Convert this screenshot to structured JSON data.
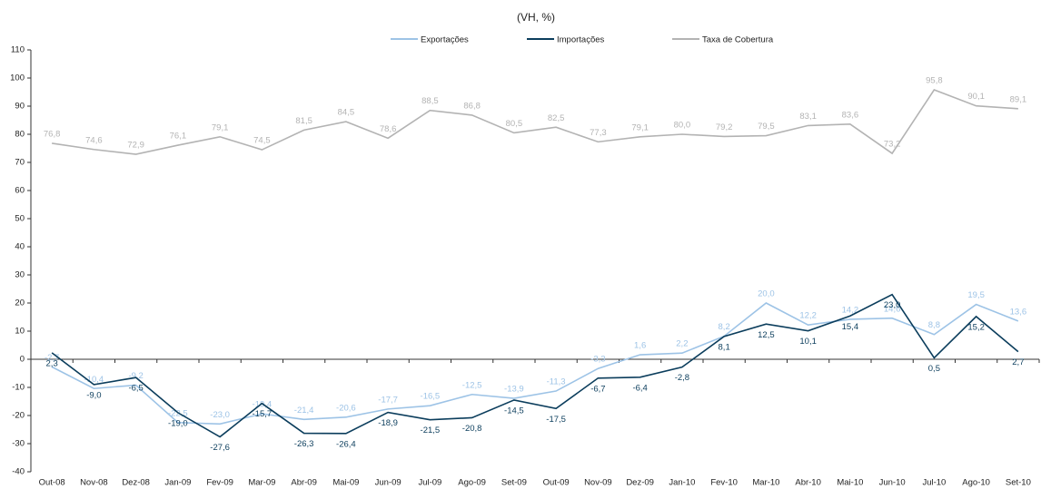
{
  "chart_data": {
    "type": "line",
    "title": "(VH, %)",
    "categories": [
      "Out-08",
      "Nov-08",
      "Dez-08",
      "Jan-09",
      "Fev-09",
      "Mar-09",
      "Abr-09",
      "Mai-09",
      "Jun-09",
      "Jul-09",
      "Ago-09",
      "Set-09",
      "Out-09",
      "Nov-09",
      "Dez-09",
      "Jan-10",
      "Fev-10",
      "Mar-10",
      "Abr-10",
      "Mai-10",
      "Jun-10",
      "Jul-10",
      "Ago-10",
      "Set-10"
    ],
    "series": [
      {
        "name": "Exportações",
        "color": "#9dc3e6",
        "values": [
          -2.7,
          -10.4,
          -9.2,
          -22.5,
          -23.0,
          -19.4,
          -21.4,
          -20.6,
          -17.7,
          -16.5,
          -12.5,
          -13.9,
          -11.3,
          -3.3,
          1.6,
          2.2,
          8.2,
          20.0,
          12.2,
          14.2,
          14.6,
          8.8,
          19.5,
          13.6
        ],
        "value_labels": [
          "-2,7",
          "-10,4",
          "-9,2",
          "-22,5",
          "-23,0",
          "-19,4",
          "-21,4",
          "-20,6",
          "-17,7",
          "-16,5",
          "-12,5",
          "-13,9",
          "-11,3",
          "-3,3",
          "1,6",
          "2,2",
          "8,2",
          "20,0",
          "12,2",
          "14,2",
          "14,6",
          "8,8",
          "19,5",
          "13,6"
        ]
      },
      {
        "name": "Importações",
        "color": "#0b3d5c",
        "values": [
          2.3,
          -9.0,
          -6.5,
          -19.0,
          -27.6,
          -15.7,
          -26.3,
          -26.4,
          -18.9,
          -21.5,
          -20.8,
          -14.5,
          -17.5,
          -6.7,
          -6.4,
          -2.8,
          8.1,
          12.5,
          10.1,
          15.4,
          23.0,
          0.5,
          15.2,
          2.7
        ],
        "value_labels": [
          "2,3",
          "-9,0",
          "-6,5",
          "-19,0",
          "-27,6",
          "-15,7",
          "-26,3",
          "-26,4",
          "-18,9",
          "-21,5",
          "-20,8",
          "-14,5",
          "-17,5",
          "-6,7",
          "-6,4",
          "-2,8",
          "8,1",
          "12,5",
          "10,1",
          "15,4",
          "23,0",
          "0,5",
          "15,2",
          "2,7"
        ]
      },
      {
        "name": "Taxa de Cobertura",
        "color": "#b3b3b3",
        "values": [
          76.8,
          74.6,
          72.9,
          76.1,
          79.1,
          74.5,
          81.5,
          84.5,
          78.6,
          88.5,
          86.8,
          80.5,
          82.5,
          77.3,
          79.1,
          80.0,
          79.2,
          79.5,
          83.1,
          83.6,
          73.2,
          95.8,
          90.1,
          89.1
        ],
        "value_labels": [
          "76,8",
          "74,6",
          "72,9",
          "76,1",
          "79,1",
          "74,5",
          "81,5",
          "84,5",
          "78,6",
          "88,5",
          "86,8",
          "80,5",
          "82,5",
          "77,3",
          "79,1",
          "80,0",
          "79,2",
          "79,5",
          "83,1",
          "83,6",
          "73,2",
          "95,8",
          "90,1",
          "89,1"
        ]
      }
    ],
    "ylim": [
      -40,
      110
    ],
    "yticks": [
      -40,
      -30,
      -20,
      -10,
      0,
      10,
      20,
      30,
      40,
      50,
      60,
      70,
      80,
      90,
      100,
      110
    ],
    "legend": "top"
  }
}
